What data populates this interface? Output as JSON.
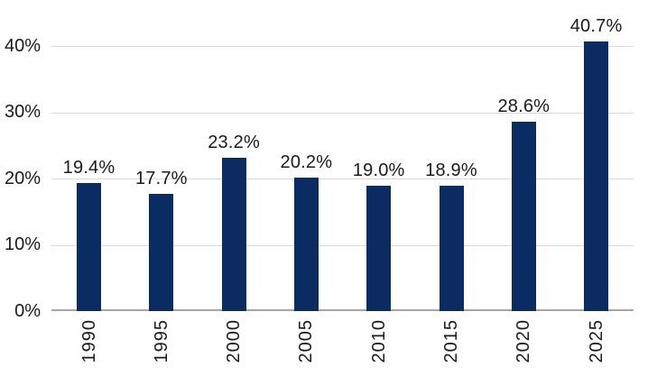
{
  "chart_data": {
    "type": "bar",
    "title": "",
    "xlabel": "",
    "ylabel": "",
    "categories": [
      "1990",
      "1995",
      "2000",
      "2005",
      "2010",
      "2015",
      "2020",
      "2025"
    ],
    "values": [
      19.4,
      17.7,
      23.2,
      20.2,
      19.0,
      18.9,
      28.6,
      40.7
    ],
    "data_labels": [
      "19.4%",
      "17.7%",
      "23.2%",
      "20.2%",
      "19.0%",
      "18.9%",
      "28.6%",
      "40.7%"
    ],
    "yticks": [
      {
        "value": 0,
        "label": "0%"
      },
      {
        "value": 10,
        "label": "10%"
      },
      {
        "value": 20,
        "label": "20%"
      },
      {
        "value": 30,
        "label": "30%"
      },
      {
        "value": 40,
        "label": "40%"
      }
    ],
    "ylim": [
      0,
      47
    ],
    "ytick_step": 10,
    "grid": true,
    "legend": false,
    "x_label_rotation_degrees": 90,
    "colors": {
      "bar": "#0b2b63",
      "gridline": "#d9d9d9",
      "axis_line": "#a6a6a6",
      "text": "#1a1a1a",
      "background": "#ffffff"
    }
  }
}
